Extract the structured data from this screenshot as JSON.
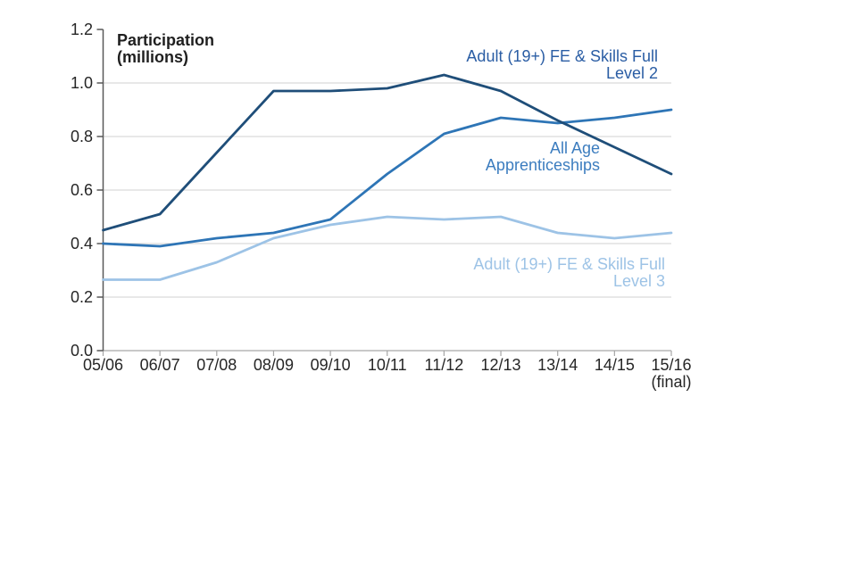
{
  "chart_data": {
    "type": "line",
    "title": "Participation\n(millions)",
    "xlabel": "",
    "ylabel": "Participation (millions)",
    "ylim": [
      0,
      1.2
    ],
    "y_ticks": [
      "0.0",
      "0.2",
      "0.4",
      "0.6",
      "0.8",
      "1.0",
      "1.2"
    ],
    "grid": "horizontal-only",
    "legend_position": "inline-annotations",
    "categories": [
      "05/06",
      "06/07",
      "07/08",
      "08/09",
      "09/10",
      "10/11",
      "11/12",
      "12/13",
      "13/14",
      "14/15",
      "15/16\n(final)"
    ],
    "series": [
      {
        "name": "Adult (19+) FE & Skills Full Level 2",
        "label": "Adult (19+) FE & Skills Full\nLevel 2",
        "color": "#1f4e79",
        "label_color": "#2a5da4",
        "values": [
          0.45,
          0.51,
          0.74,
          0.97,
          0.97,
          0.98,
          1.03,
          0.97,
          0.86,
          0.76,
          0.66
        ]
      },
      {
        "name": "All Age Apprenticeships",
        "label": "All Age\nApprenticeships",
        "color": "#2e75b6",
        "label_color": "#3c7dbf",
        "values": [
          0.4,
          0.39,
          0.42,
          0.44,
          0.49,
          0.66,
          0.81,
          0.87,
          0.85,
          0.87,
          0.9
        ]
      },
      {
        "name": "Adult (19+) FE & Skills Full Level 3",
        "label": "Adult (19+) FE & Skills Full\nLevel 3",
        "color": "#9dc3e6",
        "label_color": "#9dc3e6",
        "values": [
          0.265,
          0.265,
          0.33,
          0.42,
          0.47,
          0.5,
          0.49,
          0.5,
          0.44,
          0.42,
          0.44
        ]
      }
    ],
    "axis_colors": {
      "y_axis": "#595959",
      "x_axis": "#a6a6a6",
      "gridline": "#d9d9d9",
      "tick_text": "#262626"
    }
  }
}
